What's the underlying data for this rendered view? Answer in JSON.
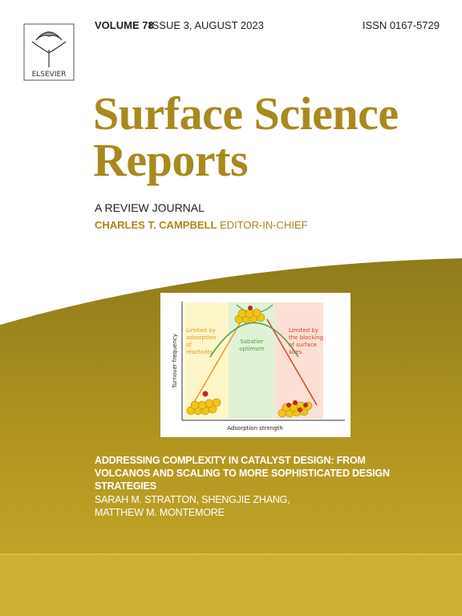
{
  "header": {
    "volume": "VOLUME 78",
    "issue": "ISSUE 3, AUGUST 2023",
    "issn": "ISSN 0167-5729",
    "publisher": "ELSEVIER"
  },
  "journal": {
    "title_lines": [
      "Surface Science",
      "Reports"
    ],
    "subtitle": "A REVIEW JOURNAL",
    "editor": "CHARLES T. CAMPBELL",
    "editor_role": "EDITOR-IN-CHIEF"
  },
  "figure": {
    "left_label": [
      "Limited by",
      "adsorption",
      "of",
      "reactants"
    ],
    "middle_label": [
      "Sabatier",
      "optimum"
    ],
    "right_label": [
      "Limited by",
      "the blocking",
      "of surface",
      "sites"
    ],
    "y_axis": "Turnover frequency",
    "x_axis": "Adsorption strength"
  },
  "article": {
    "title_lines": [
      "ADDRESSING COMPLEXITY IN CATALYST DESIGN: FROM",
      "VOLCANOS AND SCALING TO MORE SOPHISTICATED DESIGN",
      "STRATEGIES"
    ],
    "author_lines": [
      "SARAH M. STRATTON, SHENGJIE ZHANG,",
      "MATTHEW M. MONTEMORE"
    ]
  }
}
